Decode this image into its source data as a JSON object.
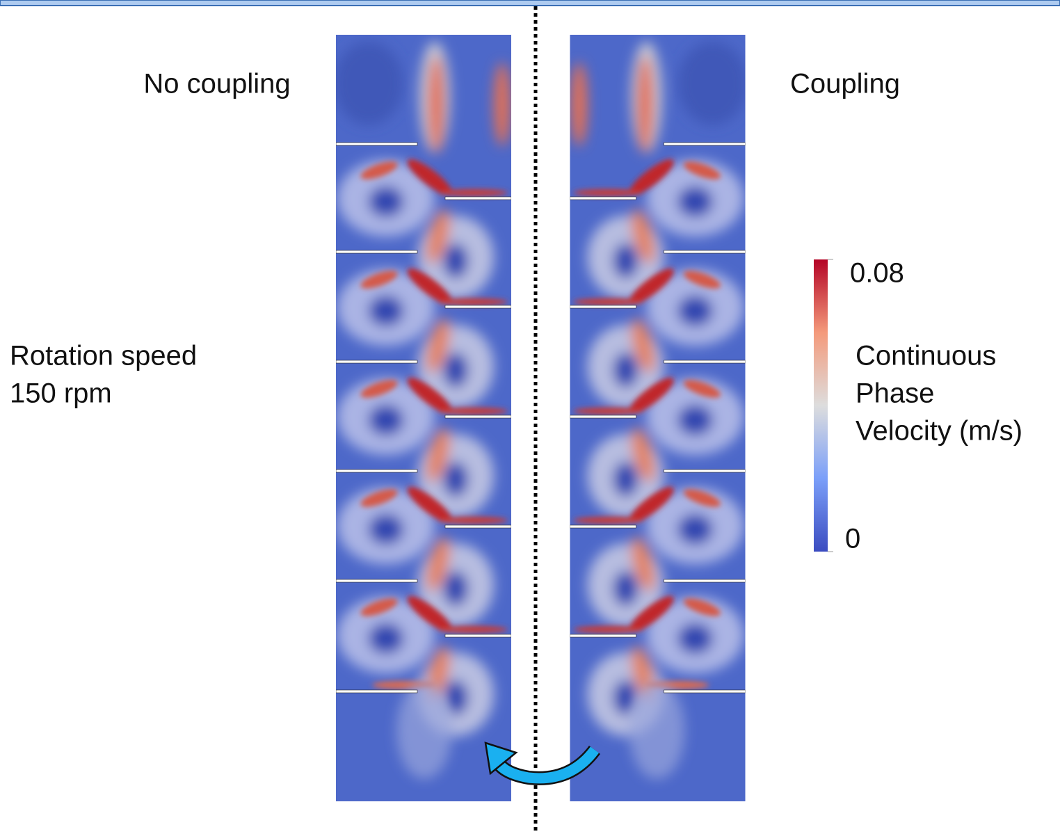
{
  "labels": {
    "left": "No coupling",
    "right": "Coupling",
    "speed": [
      "Rotation speed",
      "150 rpm"
    ]
  },
  "colorbar": {
    "title": [
      "Continuous",
      "Phase",
      "Velocity (m/s)"
    ],
    "range": [
      0,
      0.08
    ],
    "ticks": [
      0.08,
      0
    ]
  }
}
